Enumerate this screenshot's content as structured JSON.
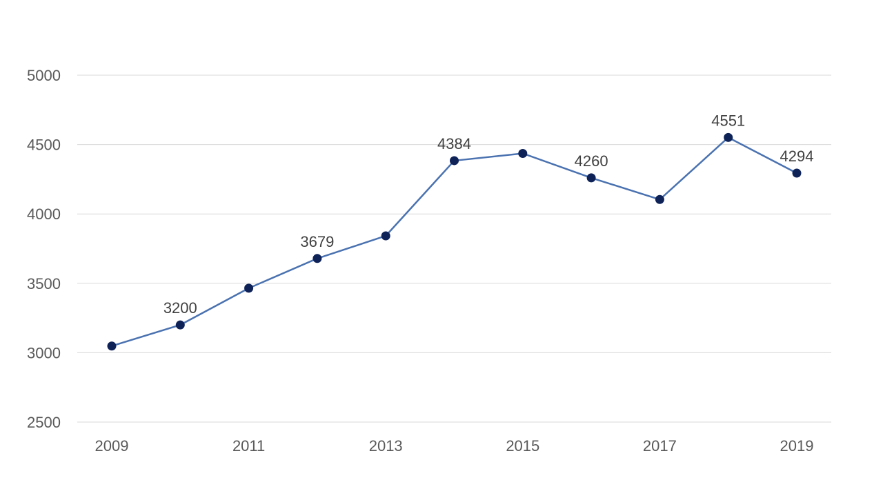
{
  "chart_data": {
    "type": "line",
    "title": "",
    "xlabel": "",
    "ylabel": "",
    "x": [
      2009,
      2010,
      2011,
      2012,
      2013,
      2014,
      2015,
      2016,
      2017,
      2018,
      2019
    ],
    "x_tick_labels": [
      "2009",
      "2011",
      "2013",
      "2015",
      "2017",
      "2019"
    ],
    "y_tick_labels": [
      "2500",
      "3000",
      "3500",
      "4000",
      "4500",
      "5000"
    ],
    "ylim": [
      2500,
      5000
    ],
    "y_ticks": [
      2500,
      3000,
      3500,
      4000,
      4500,
      5000
    ],
    "grid": true,
    "legend": "none",
    "series": [
      {
        "values": [
          3048,
          3200,
          3465,
          3679,
          3842,
          4384,
          4436,
          4260,
          4104,
          4551,
          4294
        ],
        "data_labels": [
          {
            "index": 1,
            "text": "3200"
          },
          {
            "index": 3,
            "text": "3679"
          },
          {
            "index": 5,
            "text": "4384"
          },
          {
            "index": 7,
            "text": "4260"
          },
          {
            "index": 9,
            "text": "4551"
          },
          {
            "index": 10,
            "text": "4294"
          }
        ],
        "line_color": "#4a72b0",
        "marker_color": "#0e2258"
      }
    ],
    "colors": {
      "grid": "#d9d9d9",
      "tick_text": "#595959",
      "label_text": "#404040"
    }
  }
}
